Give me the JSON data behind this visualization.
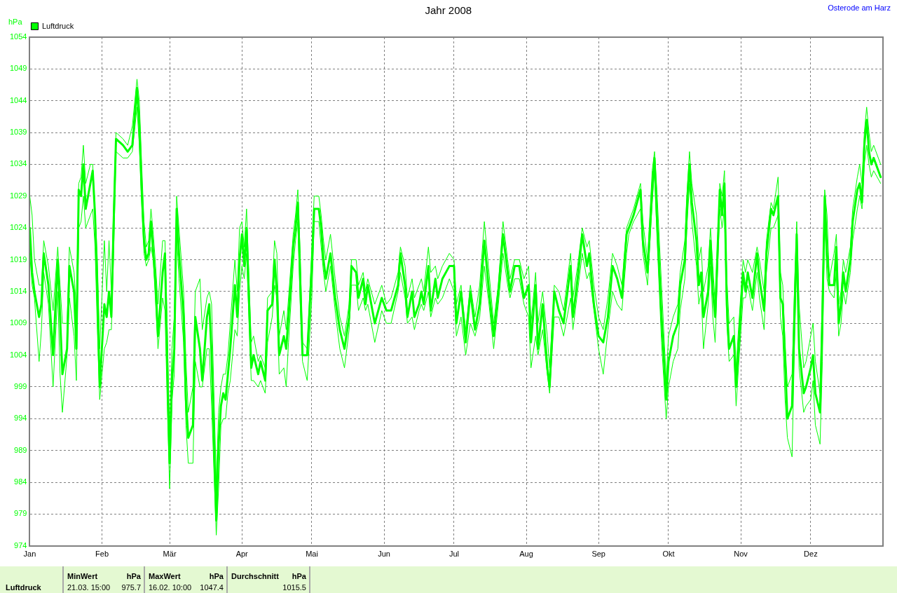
{
  "chart_data": {
    "type": "line",
    "title": "Jahr 2008",
    "subtitle": "Osterode am Harz",
    "ylabel": "hPa",
    "x": [
      "2008-01-01",
      "2008-01-02",
      "2008-01-03",
      "2008-01-05",
      "2008-01-06",
      "2008-01-07",
      "2008-01-09",
      "2008-01-11",
      "2008-01-13",
      "2008-01-14",
      "2008-01-15",
      "2008-01-17",
      "2008-01-18",
      "2008-01-20",
      "2008-01-21",
      "2008-01-22",
      "2008-01-23",
      "2008-01-24",
      "2008-01-25",
      "2008-01-27",
      "2008-01-28",
      "2008-01-29",
      "2008-01-30",
      "2008-01-31",
      "2008-02-02",
      "2008-02-03",
      "2008-02-04",
      "2008-02-05",
      "2008-02-06",
      "2008-02-07",
      "2008-02-10",
      "2008-02-12",
      "2008-02-14",
      "2008-02-16",
      "2008-02-17",
      "2008-02-18",
      "2008-02-19",
      "2008-02-20",
      "2008-02-21",
      "2008-02-22",
      "2008-02-23",
      "2008-02-24",
      "2008-02-25",
      "2008-02-27",
      "2008-02-28",
      "2008-02-29",
      "2008-03-01",
      "2008-03-02",
      "2008-03-03",
      "2008-03-04",
      "2008-03-05",
      "2008-03-07",
      "2008-03-08",
      "2008-03-09",
      "2008-03-11",
      "2008-03-12",
      "2008-03-14",
      "2008-03-15",
      "2008-03-17",
      "2008-03-18",
      "2008-03-19",
      "2008-03-21",
      "2008-03-22",
      "2008-03-23",
      "2008-03-24",
      "2008-03-25",
      "2008-03-26",
      "2008-03-27",
      "2008-03-29",
      "2008-03-30",
      "2008-03-31",
      "2008-04-01",
      "2008-04-02",
      "2008-04-03",
      "2008-04-05",
      "2008-04-06",
      "2008-04-08",
      "2008-04-09",
      "2008-04-11",
      "2008-04-12",
      "2008-04-14",
      "2008-04-15",
      "2008-04-16",
      "2008-04-17",
      "2008-04-19",
      "2008-04-20",
      "2008-04-21",
      "2008-04-23",
      "2008-04-24",
      "2008-04-25",
      "2008-04-26",
      "2008-04-27",
      "2008-04-29",
      "2008-05-01",
      "2008-05-02",
      "2008-05-04",
      "2008-05-05",
      "2008-05-06",
      "2008-05-07",
      "2008-05-09",
      "2008-05-11",
      "2008-05-13",
      "2008-05-15",
      "2008-05-17",
      "2008-05-18",
      "2008-05-20",
      "2008-05-21",
      "2008-05-23",
      "2008-05-24",
      "2008-05-25",
      "2008-05-28",
      "2008-05-31",
      "2008-06-02",
      "2008-06-04",
      "2008-06-07",
      "2008-06-08",
      "2008-06-10",
      "2008-06-11",
      "2008-06-13",
      "2008-06-14",
      "2008-06-16",
      "2008-06-17",
      "2008-06-18",
      "2008-06-20",
      "2008-06-21",
      "2008-06-23",
      "2008-06-24",
      "2008-06-26",
      "2008-06-29",
      "2008-07-01",
      "2008-07-02",
      "2008-07-04",
      "2008-07-06",
      "2008-07-08",
      "2008-07-10",
      "2008-07-12",
      "2008-07-14",
      "2008-07-16",
      "2008-07-18",
      "2008-07-20",
      "2008-07-22",
      "2008-07-24",
      "2008-07-25",
      "2008-07-27",
      "2008-07-29",
      "2008-07-31",
      "2008-08-02",
      "2008-08-03",
      "2008-08-05",
      "2008-08-06",
      "2008-08-08",
      "2008-08-10",
      "2008-08-11",
      "2008-08-13",
      "2008-08-15",
      "2008-08-17",
      "2008-08-20",
      "2008-08-21",
      "2008-08-23",
      "2008-08-25",
      "2008-08-27",
      "2008-08-28",
      "2008-08-30",
      "2008-09-01",
      "2008-09-03",
      "2008-09-05",
      "2008-09-07",
      "2008-09-09",
      "2008-09-11",
      "2008-09-13",
      "2008-09-14",
      "2008-09-16",
      "2008-09-19",
      "2008-09-20",
      "2008-09-22",
      "2008-09-24",
      "2008-09-25",
      "2008-09-26",
      "2008-09-28",
      "2008-09-30",
      "2008-10-01",
      "2008-10-03",
      "2008-10-05",
      "2008-10-06",
      "2008-10-08",
      "2008-10-09",
      "2008-10-10",
      "2008-10-11",
      "2008-10-13",
      "2008-10-14",
      "2008-10-15",
      "2008-10-16",
      "2008-10-18",
      "2008-10-19",
      "2008-10-20",
      "2008-10-21",
      "2008-10-23",
      "2008-10-24",
      "2008-10-25",
      "2008-10-26",
      "2008-10-27",
      "2008-10-29",
      "2008-10-30",
      "2008-10-31",
      "2008-11-02",
      "2008-11-03",
      "2008-11-04",
      "2008-11-06",
      "2008-11-08",
      "2008-11-09",
      "2008-11-11",
      "2008-11-12",
      "2008-11-14",
      "2008-11-15",
      "2008-11-17",
      "2008-11-18",
      "2008-11-19",
      "2008-11-20",
      "2008-11-21",
      "2008-11-23",
      "2008-11-24",
      "2008-11-25",
      "2008-11-26",
      "2008-11-28",
      "2008-11-29",
      "2008-12-01",
      "2008-12-02",
      "2008-12-03",
      "2008-12-05",
      "2008-12-06",
      "2008-12-07",
      "2008-12-08",
      "2008-12-09",
      "2008-12-11",
      "2008-12-12",
      "2008-12-13",
      "2008-12-14",
      "2008-12-15",
      "2008-12-16",
      "2008-12-18",
      "2008-12-19",
      "2008-12-21",
      "2008-12-22",
      "2008-12-23",
      "2008-12-24",
      "2008-12-25",
      "2008-12-26",
      "2008-12-27",
      "2008-12-28",
      "2008-12-31"
    ],
    "series": [
      {
        "name": "Luftdruck",
        "color": "#00ff00",
        "values": [
          1024,
          1017,
          1014,
          1010,
          1012,
          1020,
          1015,
          1004,
          1019,
          1010,
          1001,
          1005,
          1018,
          1014,
          1005,
          1030,
          1029,
          1034,
          1027,
          1031,
          1033,
          1026,
          1014,
          999,
          1012,
          1010,
          1014,
          1010,
          1025,
          1038,
          1037,
          1036,
          1037,
          1046,
          1040,
          1030,
          1022,
          1019,
          1020,
          1025,
          1020,
          1015,
          1007,
          1017,
          1020,
          1002,
          987,
          1000,
          1005,
          1027,
          1020,
          1010,
          997,
          991,
          993,
          1010,
          1005,
          1000,
          1010,
          1012,
          1004,
          978,
          990,
          996,
          998,
          997,
          1001,
          1005,
          1015,
          1010,
          1019,
          1023,
          1018,
          1024,
          1002,
          1004,
          1001,
          1003,
          1000,
          1011,
          1012,
          1019,
          1014,
          1004,
          1007,
          1005,
          1010,
          1021,
          1024,
          1028,
          1016,
          1004,
          1004,
          1018,
          1027,
          1027,
          1024,
          1019,
          1016,
          1020,
          1013,
          1008,
          1005,
          1010,
          1018,
          1017,
          1013,
          1016,
          1012,
          1015,
          1009,
          1013,
          1011,
          1011,
          1015,
          1020,
          1015,
          1010,
          1014,
          1010,
          1012,
          1014,
          1012,
          1018,
          1011,
          1016,
          1013,
          1016,
          1018,
          1018,
          1009,
          1014,
          1006,
          1014,
          1008,
          1012,
          1022,
          1014,
          1007,
          1014,
          1023,
          1017,
          1014,
          1018,
          1018,
          1013,
          1015,
          1006,
          1015,
          1005,
          1012,
          1002,
          999,
          1014,
          1011,
          1009,
          1018,
          1010,
          1016,
          1023,
          1018,
          1020,
          1012,
          1007,
          1006,
          1010,
          1018,
          1016,
          1013,
          1023,
          1024,
          1026,
          1030,
          1022,
          1017,
          1030,
          1035,
          1026,
          1010,
          997,
          1003,
          1007,
          1009,
          1015,
          1019,
          1028,
          1034,
          1028,
          1022,
          1015,
          1017,
          1010,
          1014,
          1022,
          1014,
          1010,
          1030,
          1026,
          1031,
          1012,
          1005,
          1007,
          999,
          1005,
          1017,
          1014,
          1017,
          1013,
          1020,
          1016,
          1011,
          1020,
          1027,
          1026,
          1029,
          1013,
          1012,
          1003,
          994,
          996,
          1010,
          1023,
          1005,
          998,
          999,
          1002,
          1004,
          998,
          995,
          1010,
          1029,
          1020,
          1015,
          1015,
          1021,
          1009,
          1012,
          1017,
          1014,
          1019,
          1025,
          1030,
          1031,
          1028,
          1037,
          1041,
          1036,
          1034,
          1035,
          1032
        ]
      },
      {
        "color": "#00ff00",
        "values": [
          1029,
          1026,
          1019,
          1015,
          1015,
          1022,
          1018,
          1011,
          1021,
          1015,
          1009,
          1009,
          1021,
          1017,
          1011,
          1031,
          1032,
          1037,
          1031,
          1034,
          1034,
          1027,
          1019,
          1005,
          1022,
          1014,
          1022,
          1014,
          1028,
          1039,
          1038,
          1037,
          1040,
          1047.4,
          1044,
          1034,
          1025,
          1021,
          1022,
          1027,
          1023,
          1018,
          1012,
          1022,
          1022,
          1008,
          991,
          1005,
          1010,
          1029,
          1024,
          1014,
          1003,
          995,
          999,
          1014,
          1016,
          1008,
          1013,
          1014,
          1012,
          984,
          995,
          999,
          1001,
          1001,
          1004,
          1009,
          1019,
          1014,
          1024,
          1025,
          1021,
          1027,
          1006,
          1007,
          1003,
          1004,
          1002,
          1013,
          1014,
          1022,
          1020,
          1007,
          1011,
          1008,
          1013,
          1023,
          1026,
          1030,
          1020,
          1006,
          1005,
          1021,
          1029,
          1029,
          1026,
          1022,
          1019,
          1023,
          1016,
          1010,
          1007,
          1012,
          1019,
          1019,
          1015,
          1017,
          1014,
          1016,
          1012,
          1015,
          1012,
          1013,
          1017,
          1021,
          1018,
          1013,
          1016,
          1013,
          1015,
          1016,
          1014,
          1021,
          1017,
          1018,
          1016,
          1018,
          1020,
          1019,
          1012,
          1015,
          1008,
          1015,
          1010,
          1015,
          1025,
          1017,
          1009,
          1015,
          1025,
          1019,
          1016,
          1019,
          1019,
          1016,
          1018,
          1009,
          1017,
          1009,
          1014,
          1007,
          1002,
          1015,
          1014,
          1011,
          1020,
          1013,
          1018,
          1024,
          1021,
          1022,
          1015,
          1010,
          1008,
          1013,
          1020,
          1018,
          1015,
          1024,
          1025,
          1027,
          1031,
          1025,
          1019,
          1033,
          1036,
          1030,
          1015,
          1000,
          1007,
          1010,
          1012,
          1017,
          1022,
          1030,
          1036,
          1031,
          1026,
          1019,
          1021,
          1014,
          1018,
          1024,
          1018,
          1012,
          1031,
          1029,
          1033,
          1016,
          1009,
          1010,
          1002,
          1008,
          1019,
          1017,
          1019,
          1017,
          1021,
          1019,
          1014,
          1022,
          1028,
          1027,
          1032,
          1017,
          1015,
          1006,
          999,
          1001,
          1014,
          1025,
          1012,
          1002,
          1003,
          1007,
          1009,
          1003,
          998,
          1014,
          1030,
          1026,
          1016,
          1020,
          1023,
          1012,
          1014,
          1019,
          1017,
          1021,
          1027,
          1032,
          1034,
          1031,
          1039,
          1043,
          1039,
          1036,
          1037,
          1034
        ]
      },
      {
        "color": "#00ff00",
        "values": [
          1020,
          1015,
          1013,
          1003,
          1008,
          1017,
          1012,
          999,
          1014,
          1001,
          995,
          1004,
          1013,
          1007,
          1000,
          1024,
          1025,
          1029,
          1024,
          1026,
          1027,
          1021,
          1008,
          997,
          1005,
          1006,
          1008,
          1008,
          1020,
          1036,
          1035,
          1035,
          1036,
          1043,
          1037,
          1028,
          1020,
          1018,
          1019,
          1021,
          1019,
          1012,
          1005,
          1013,
          1011,
          996,
          983,
          997,
          1001,
          1023,
          1016,
          1006,
          993,
          987,
          987,
          1003,
          999,
          999,
          1005,
          1005,
          996,
          975.7,
          983,
          993,
          994,
          994,
          998,
          1000,
          1008,
          1007,
          1014,
          1018,
          1016,
          1020,
          1000,
          1000,
          999,
          1000,
          998,
          1006,
          1010,
          1015,
          1013,
          1001,
          1002,
          999,
          1006,
          1018,
          1022,
          1025,
          1012,
          1003,
          1000,
          1013,
          1025,
          1025,
          1021,
          1017,
          1014,
          1018,
          1011,
          1005,
          1002,
          1008,
          1015,
          1015,
          1011,
          1013,
          1011,
          1012,
          1006,
          1011,
          1009,
          1009,
          1014,
          1017,
          1013,
          1009,
          1010,
          1008,
          1011,
          1012,
          1011,
          1014,
          1010,
          1013,
          1012,
          1013,
          1016,
          1014,
          1007,
          1010,
          1004,
          1009,
          1007,
          1010,
          1018,
          1012,
          1005,
          1012,
          1020,
          1015,
          1013,
          1016,
          1016,
          1012,
          1010,
          1002,
          1007,
          1004,
          1008,
          1001,
          998,
          1010,
          1010,
          1007,
          1013,
          1008,
          1014,
          1020,
          1016,
          1017,
          1011,
          1005,
          1001,
          1008,
          1014,
          1012,
          1011,
          1020,
          1023,
          1025,
          1027,
          1020,
          1015,
          1028,
          1033,
          1023,
          1006,
          994,
          999,
          1003,
          1005,
          1011,
          1016,
          1025,
          1031,
          1025,
          1018,
          1012,
          1014,
          1005,
          1012,
          1018,
          1010,
          1006,
          1027,
          1024,
          1027,
          1009,
          1003,
          1004,
          996,
          1002,
          1013,
          1013,
          1015,
          1011,
          1017,
          1013,
          1008,
          1017,
          1024,
          1024,
          1026,
          1010,
          1007,
          997,
          991,
          988,
          1005,
          1020,
          1002,
          995,
          996,
          997,
          1000,
          993,
          990,
          1003,
          1025,
          1016,
          1014,
          1013,
          1017,
          1007,
          1009,
          1014,
          1012,
          1017,
          1022,
          1027,
          1029,
          1027,
          1034,
          1037,
          1034,
          1032,
          1033,
          1031
        ]
      }
    ],
    "xlim": [
      "2008-01-01",
      "2009-01-01"
    ],
    "xticks": [
      {
        "value": "2008-01-01",
        "label": "Jan"
      },
      {
        "value": "2008-02-01",
        "label": "Feb"
      },
      {
        "value": "2008-03-01",
        "label": "Mär"
      },
      {
        "value": "2008-04-01",
        "label": "Apr"
      },
      {
        "value": "2008-05-01",
        "label": "Mai"
      },
      {
        "value": "2008-06-01",
        "label": "Jun"
      },
      {
        "value": "2008-07-01",
        "label": "Jul"
      },
      {
        "value": "2008-08-01",
        "label": "Aug"
      },
      {
        "value": "2008-09-01",
        "label": "Sep"
      },
      {
        "value": "2008-10-01",
        "label": "Okt"
      },
      {
        "value": "2008-11-01",
        "label": "Nov"
      },
      {
        "value": "2008-12-01",
        "label": "Dez"
      }
    ],
    "ylim": [
      974,
      1054
    ],
    "yticks": [
      974,
      979,
      984,
      989,
      994,
      999,
      1004,
      1009,
      1014,
      1019,
      1024,
      1029,
      1034,
      1039,
      1044,
      1049,
      1054
    ],
    "grid": true,
    "legend": "top left",
    "annotations": [
      "Luftdruck",
      "MinWert",
      "hPa",
      "21.03. 15:00",
      "975.7",
      "MaxWert",
      "hPa",
      "16.02. 10:00",
      "1047.4",
      "Durchschnitt",
      "hPa",
      "1015.5"
    ]
  }
}
